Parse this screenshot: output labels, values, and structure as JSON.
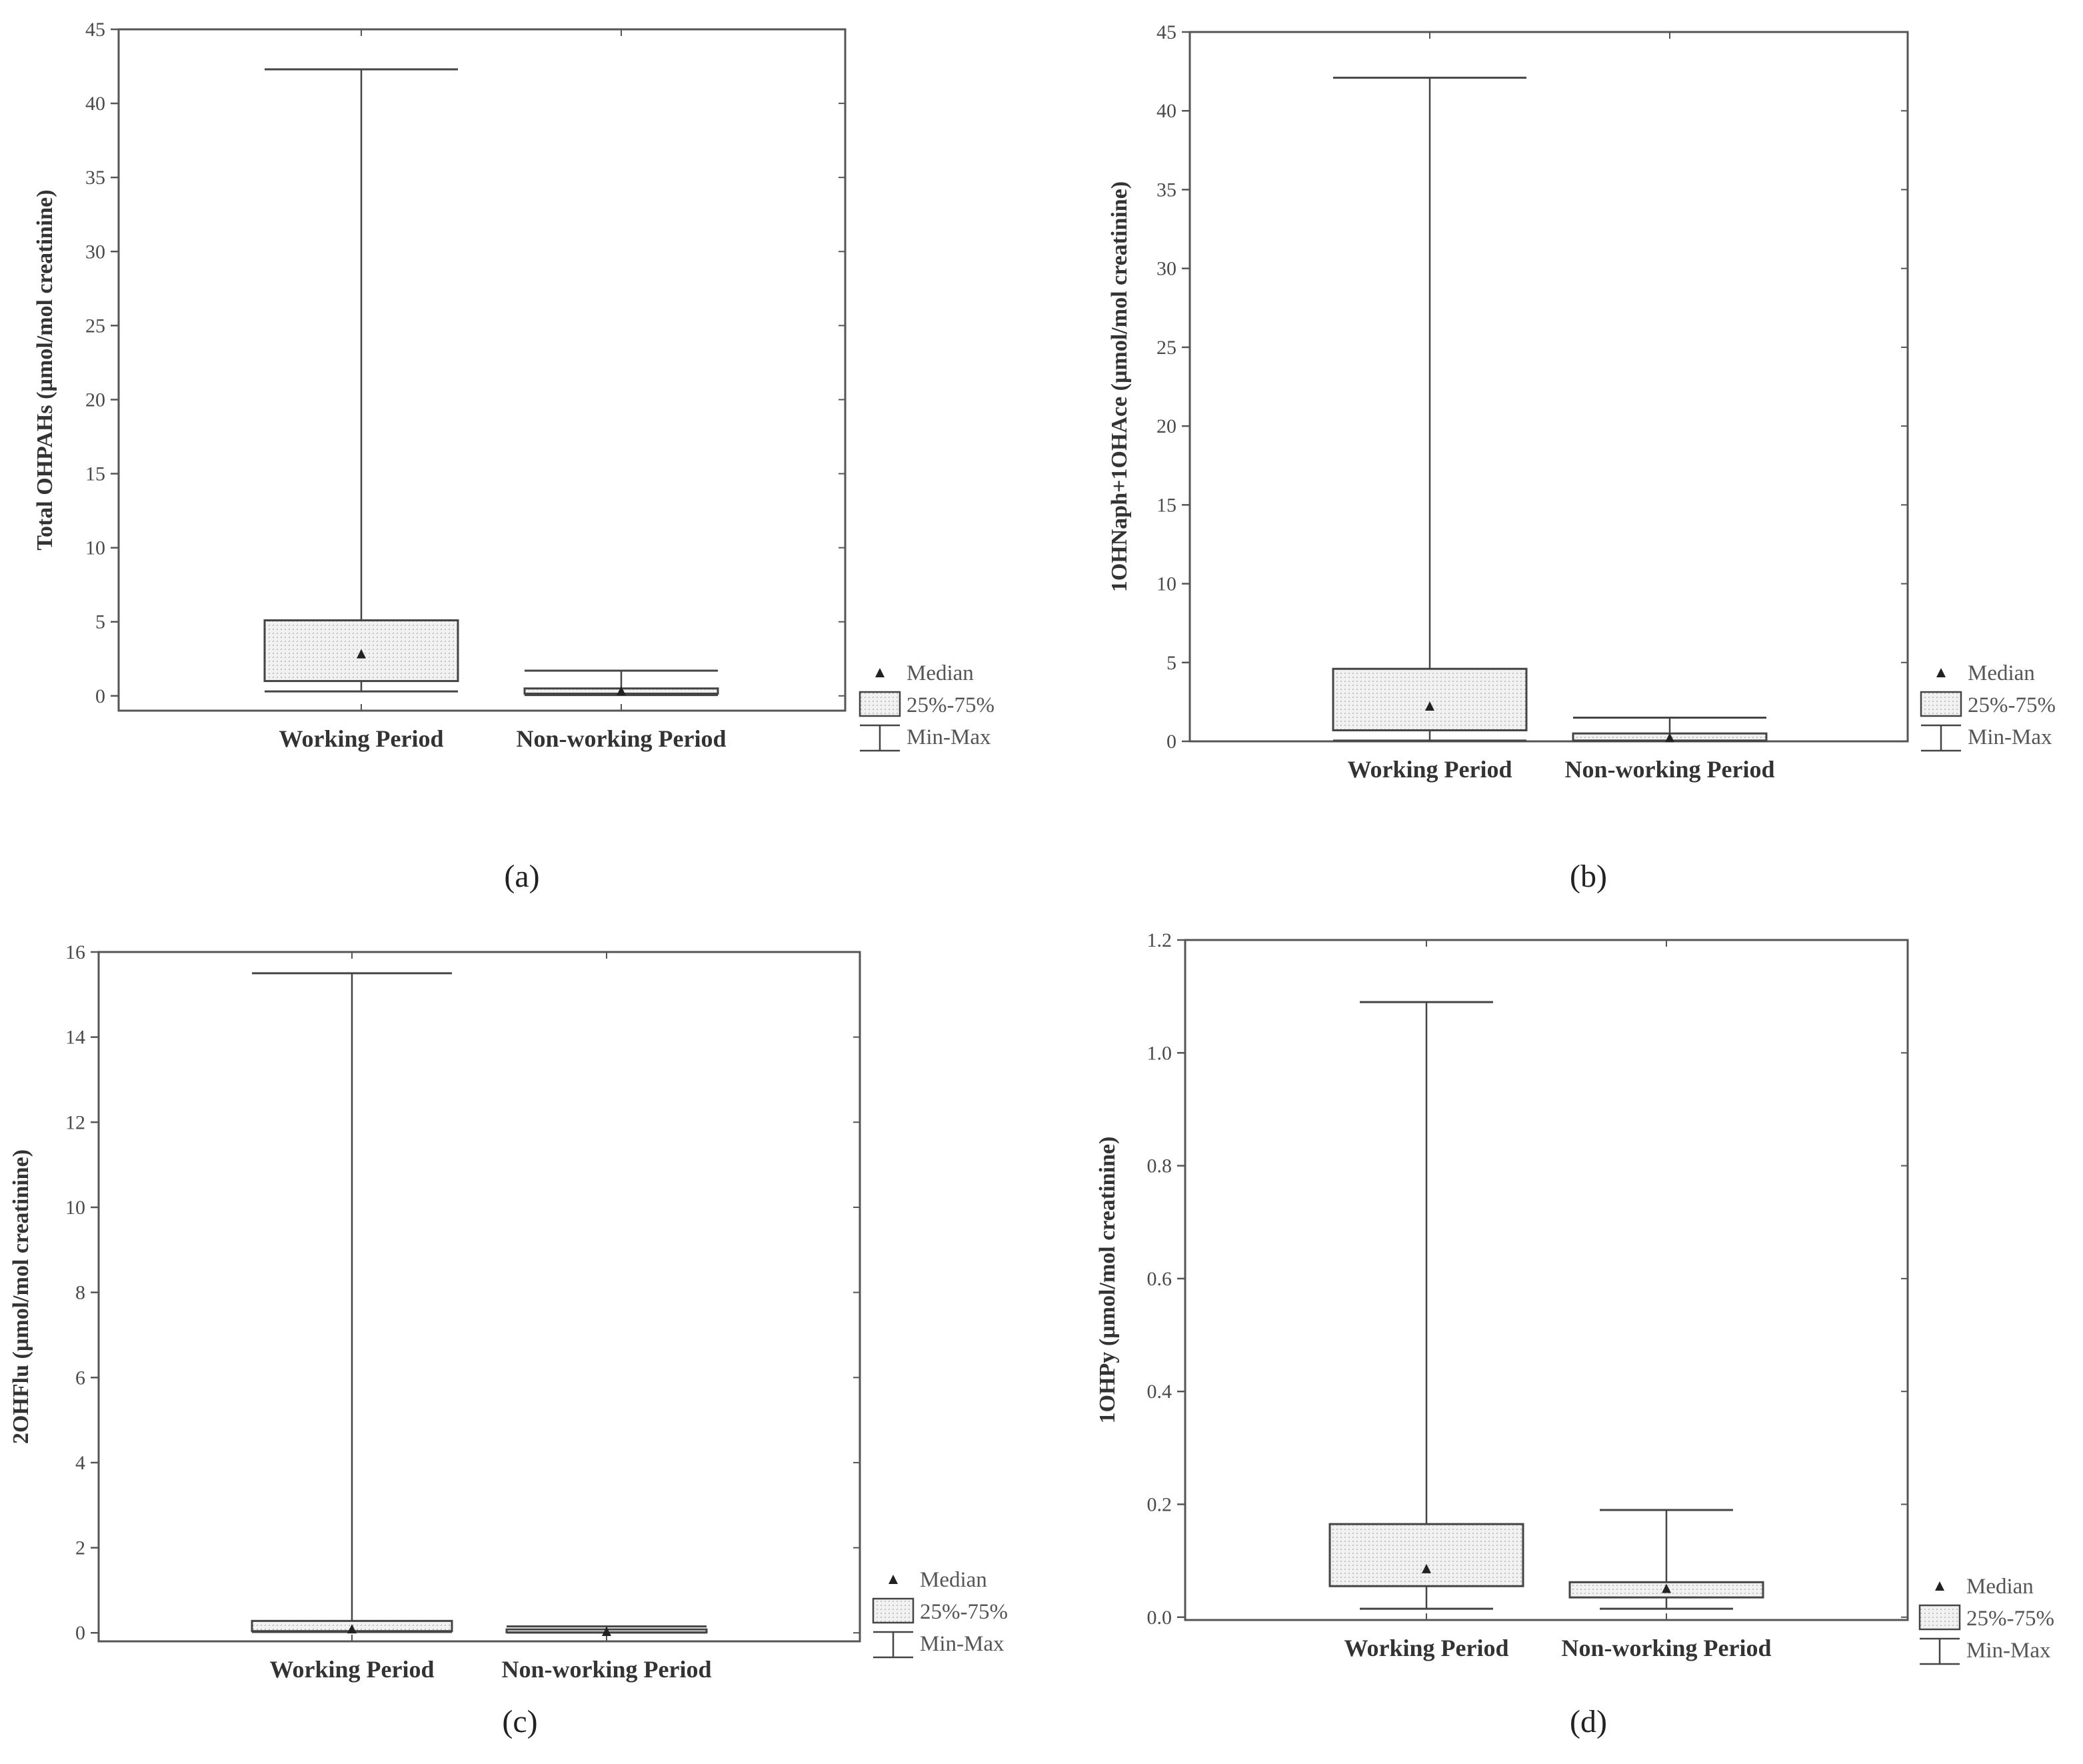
{
  "chart_data": [
    {
      "type": "box",
      "panel_label": "(a)",
      "ylabel": "Total OHPAHs (µmol/mol creatinine)",
      "ylim": [
        -1,
        45
      ],
      "yticks": [
        0,
        5,
        10,
        15,
        20,
        25,
        30,
        35,
        40,
        45
      ],
      "tick_decimals": 0,
      "categories": [
        "Working Period",
        "Non-working Period"
      ],
      "boxes": [
        {
          "category": "Working Period",
          "min": 0.3,
          "q1": 1.0,
          "median": 2.8,
          "q3": 5.1,
          "max": 42.3
        },
        {
          "category": "Non-working Period",
          "min": 0.05,
          "q1": 0.15,
          "median": 0.3,
          "q3": 0.5,
          "max": 1.7
        }
      ],
      "legend": {
        "median": "Median",
        "box": "25%-75%",
        "whisker": "Min-Max"
      }
    },
    {
      "type": "box",
      "panel_label": "(b)",
      "ylabel": "1OHNaph+1OHAce (µmol/mol creatinine)",
      "ylim": [
        0,
        45
      ],
      "yticks": [
        0,
        5,
        10,
        15,
        20,
        25,
        30,
        35,
        40,
        45
      ],
      "tick_decimals": 0,
      "categories": [
        "Working Period",
        "Non-working Period"
      ],
      "boxes": [
        {
          "category": "Working Period",
          "min": 0.05,
          "q1": 0.7,
          "median": 2.2,
          "q3": 4.6,
          "max": 42.1
        },
        {
          "category": "Non-working Period",
          "min": 0.02,
          "q1": 0.05,
          "median": 0.2,
          "q3": 0.5,
          "max": 1.5
        }
      ],
      "legend": {
        "median": "Median",
        "box": "25%-75%",
        "whisker": "Min-Max"
      }
    },
    {
      "type": "box",
      "panel_label": "(c)",
      "ylabel": "2OHFlu (µmol/mol creatinine)",
      "ylim": [
        -0.2,
        16
      ],
      "yticks": [
        0,
        2,
        4,
        6,
        8,
        10,
        12,
        14,
        16
      ],
      "tick_decimals": 0,
      "categories": [
        "Working Period",
        "Non-working Period"
      ],
      "boxes": [
        {
          "category": "Working Period",
          "min": 0.02,
          "q1": 0.04,
          "median": 0.08,
          "q3": 0.28,
          "max": 15.5
        },
        {
          "category": "Non-working Period",
          "min": 0.005,
          "q1": 0.01,
          "median": 0.02,
          "q3": 0.08,
          "max": 0.15
        }
      ],
      "legend": {
        "median": "Median",
        "box": "25%-75%",
        "whisker": "Min-Max"
      }
    },
    {
      "type": "box",
      "panel_label": "(d)",
      "ylabel": "1OHPy (µmol/mol creatinine)",
      "ylim": [
        -0.005,
        1.2
      ],
      "yticks": [
        0.0,
        0.2,
        0.4,
        0.6,
        0.8,
        1.0,
        1.2
      ],
      "tick_decimals": 1,
      "categories": [
        "Working Period",
        "Non-working Period"
      ],
      "boxes": [
        {
          "category": "Working Period",
          "min": 0.015,
          "q1": 0.055,
          "median": 0.085,
          "q3": 0.165,
          "max": 1.09
        },
        {
          "category": "Non-working Period",
          "min": 0.015,
          "q1": 0.035,
          "median": 0.05,
          "q3": 0.062,
          "max": 0.19
        }
      ],
      "legend": {
        "median": "Median",
        "box": "25%-75%",
        "whisker": "Min-Max"
      }
    }
  ]
}
